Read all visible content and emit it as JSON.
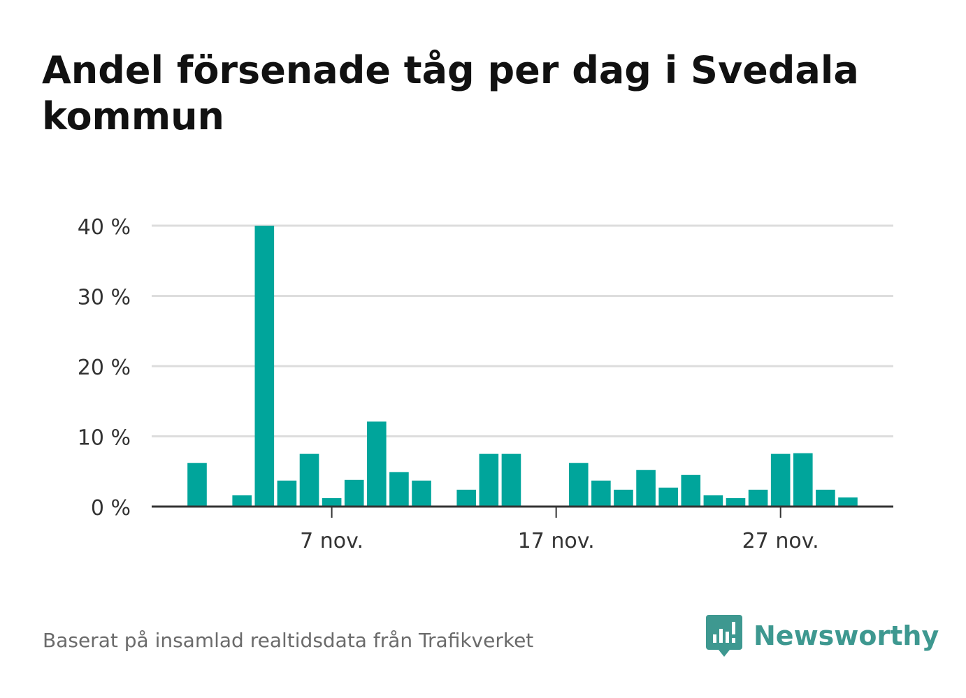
{
  "title": "Andel försenade tåg per dag i Svedala kommun",
  "source": "Baserat på insamlad realtidsdata från Trafikverket",
  "brand": {
    "name": "Newsworthy",
    "logo_icon": "newsworthy-bar-chart-speech-bubble-icon"
  },
  "colors": {
    "bar": "#00a59b",
    "grid": "#dddddd",
    "axis": "#333333",
    "brand": "#3e9890"
  },
  "chart_data": {
    "type": "bar",
    "title": "Andel försenade tåg per dag i Svedala kommun",
    "xlabel": "",
    "ylabel": "",
    "ylim": [
      0,
      40
    ],
    "yticks": [
      0,
      10,
      20,
      30,
      40
    ],
    "y_tick_labels": [
      "0 %",
      "10 %",
      "20 %",
      "30 %",
      "40 %"
    ],
    "grid": true,
    "categories": [
      "1 nov.",
      "2 nov.",
      "3 nov.",
      "4 nov.",
      "5 nov.",
      "6 nov.",
      "7 nov.",
      "8 nov.",
      "9 nov.",
      "10 nov.",
      "11 nov.",
      "12 nov.",
      "13 nov.",
      "14 nov.",
      "15 nov.",
      "16 nov.",
      "17 nov.",
      "18 nov.",
      "19 nov.",
      "20 nov.",
      "21 nov.",
      "22 nov.",
      "23 nov.",
      "24 nov.",
      "25 nov.",
      "26 nov.",
      "27 nov.",
      "28 nov.",
      "29 nov.",
      "30 nov."
    ],
    "values": [
      6.2,
      0,
      1.6,
      40.0,
      3.7,
      7.5,
      1.2,
      3.8,
      12.1,
      4.9,
      3.7,
      0,
      2.4,
      7.5,
      7.5,
      0,
      0,
      6.2,
      3.7,
      2.4,
      5.2,
      2.7,
      4.5,
      1.6,
      1.2,
      2.4,
      7.5,
      7.6,
      2.4,
      1.3
    ],
    "x_tick_labels": [
      {
        "category": "7 nov.",
        "label": "7 nov."
      },
      {
        "category": "17 nov.",
        "label": "17 nov."
      },
      {
        "category": "27 nov.",
        "label": "27 nov."
      }
    ]
  }
}
